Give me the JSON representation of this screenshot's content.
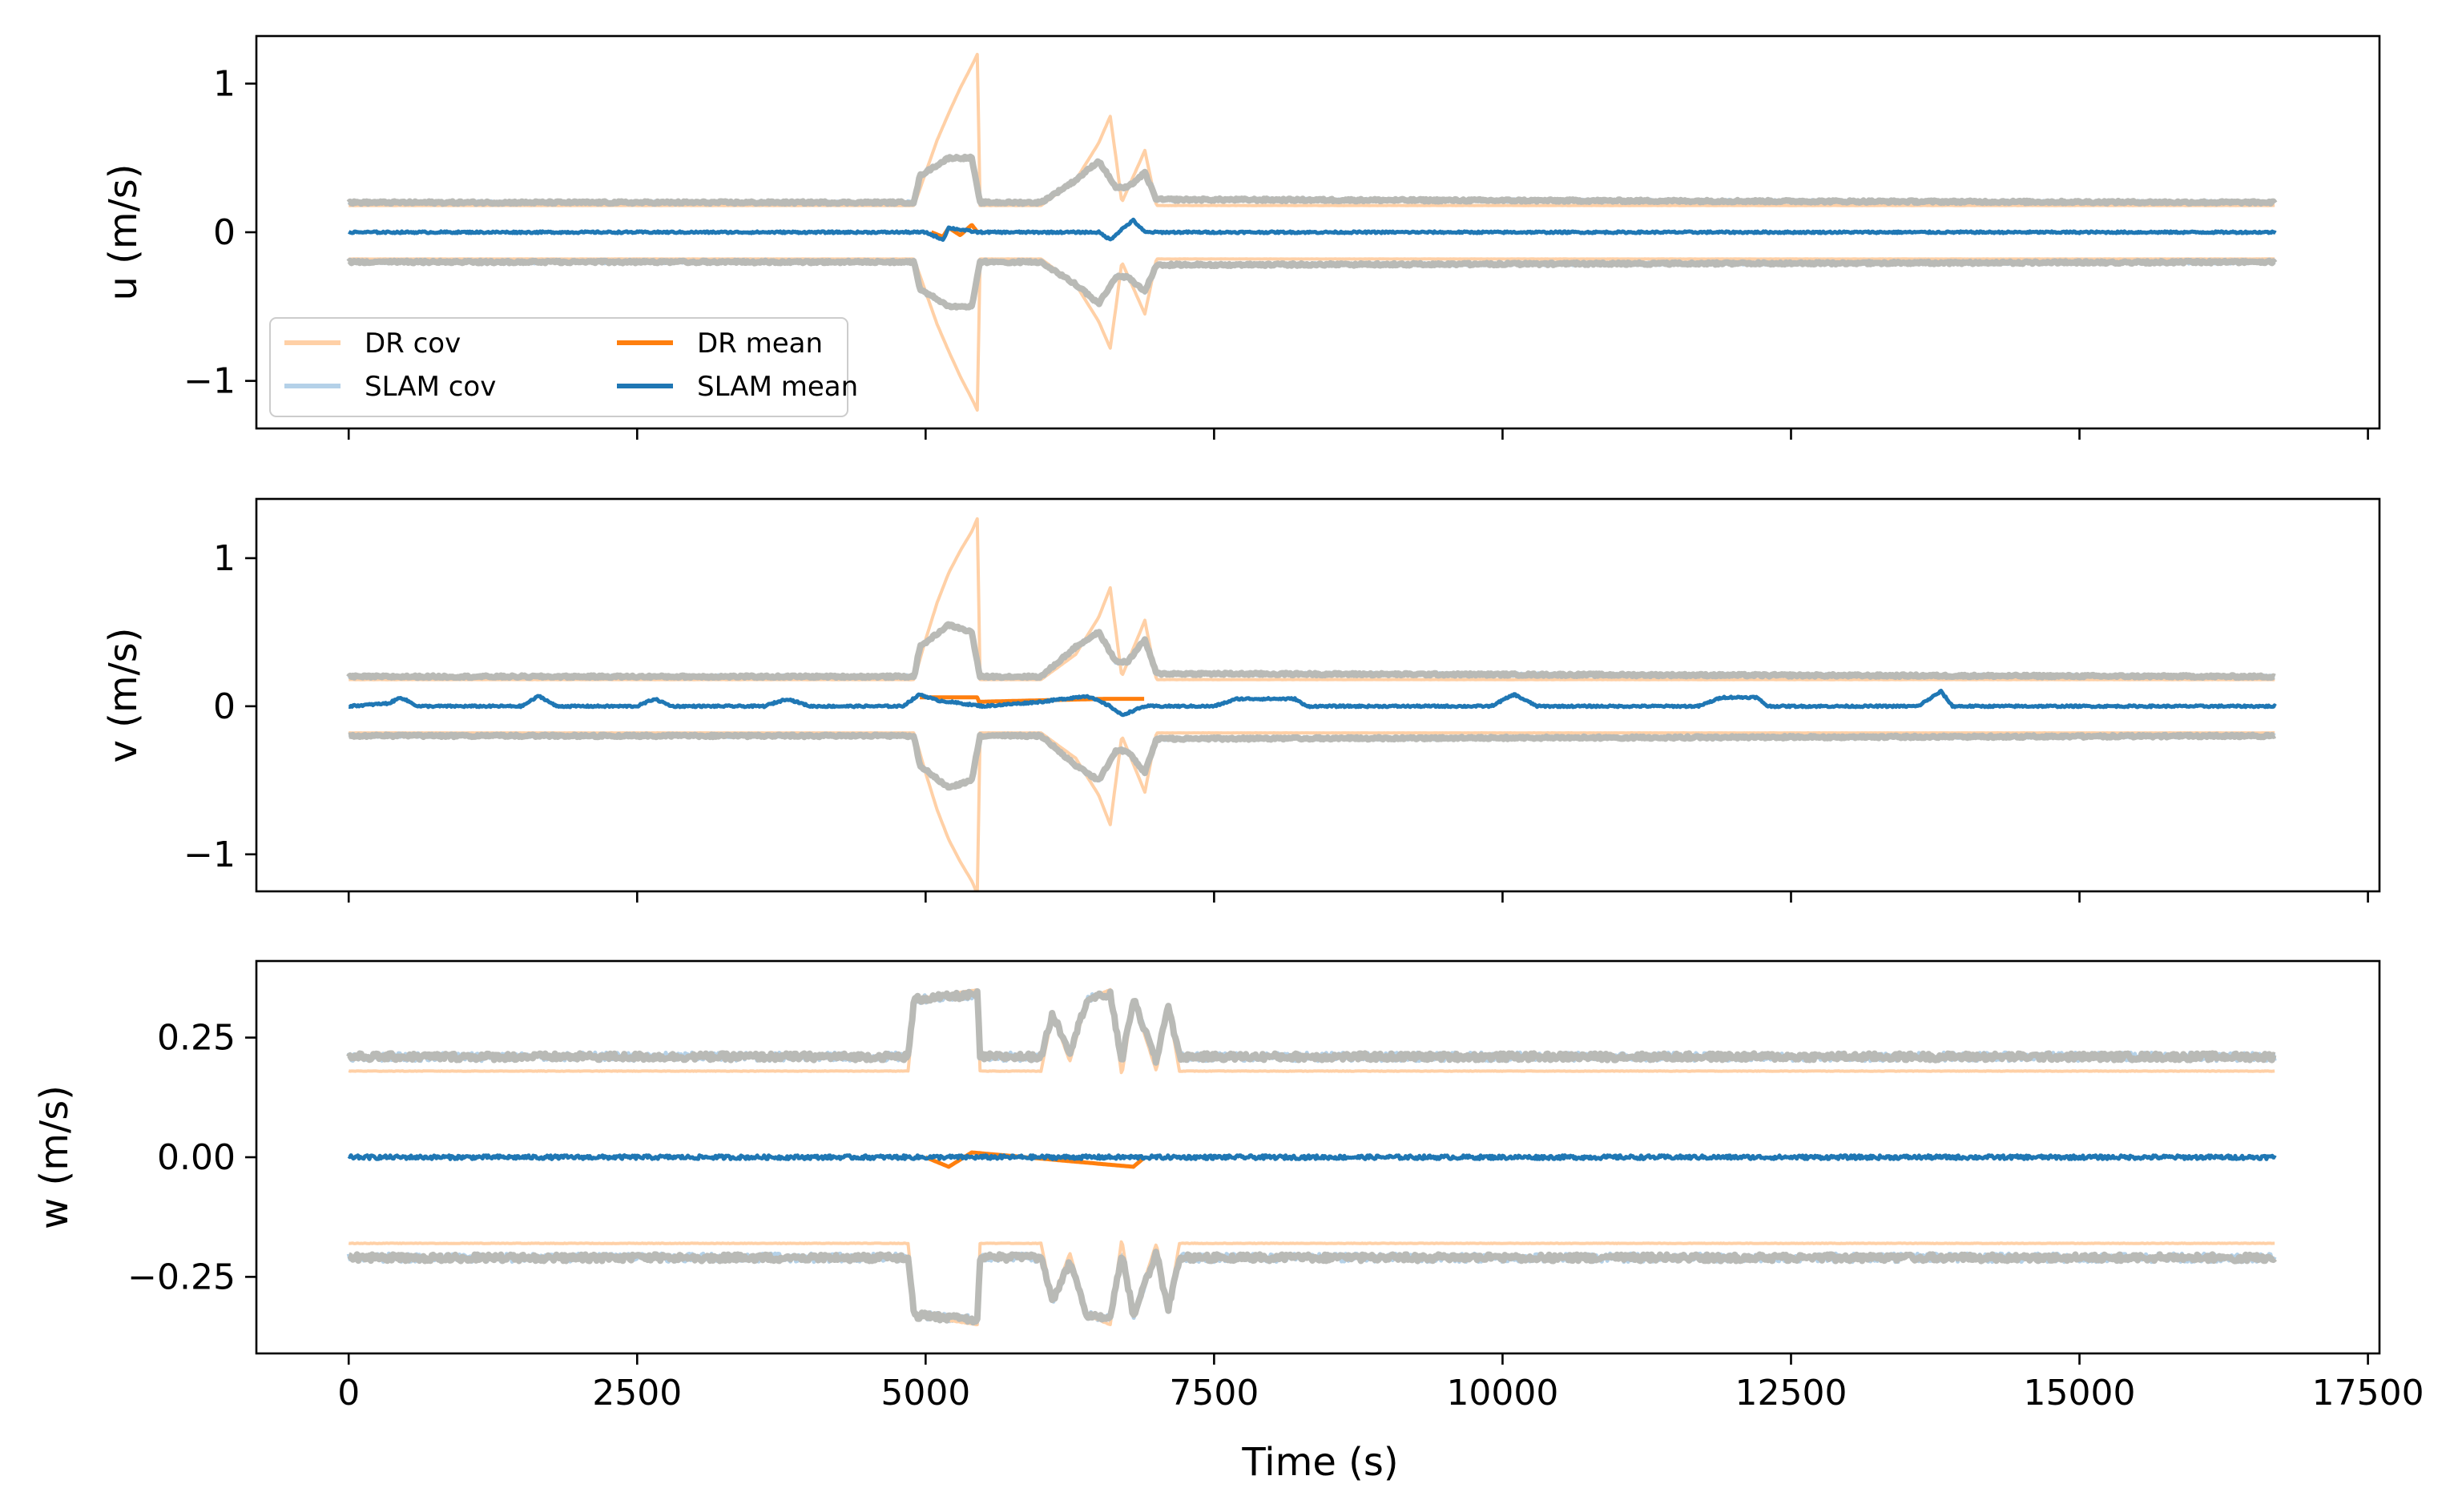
{
  "figure": {
    "xlabel": "Time (s)",
    "colors": {
      "dr_cov": "#ffd0a6",
      "slam_cov": "#b4d1e8",
      "overlap_cov": "#b9bab6",
      "dr_mean": "#ff7f0e",
      "slam_mean": "#1f77b4"
    }
  },
  "legend": {
    "entries": [
      {
        "label": "DR cov",
        "color": "#ffd0a6"
      },
      {
        "label": "SLAM cov",
        "color": "#b4d1e8"
      },
      {
        "label": "DR mean",
        "color": "#ff7f0e"
      },
      {
        "label": "SLAM mean",
        "color": "#1f77b4"
      }
    ],
    "placement": "lower-left (top panel)"
  },
  "chart_data": [
    {
      "type": "line",
      "ylabel": "u (m/s)",
      "xlim": [
        -800,
        17600
      ],
      "ylim": [
        -1.32,
        1.32
      ],
      "xticks": [
        0,
        2500,
        5000,
        7500,
        10000,
        12500,
        15000,
        17500
      ],
      "xticklabels_visible": false,
      "yticks": [
        -1,
        0,
        1
      ],
      "yticklabels": [
        "−1",
        "0",
        "1"
      ],
      "series": [
        {
          "name": "DR cov",
          "band": true,
          "x": [
            0,
            4900,
            5000,
            5100,
            5200,
            5300,
            5400,
            5450,
            5470,
            6000,
            6300,
            6500,
            6600,
            6650,
            6700,
            6900,
            7000,
            16700
          ],
          "upper": [
            0.18,
            0.18,
            0.4,
            0.62,
            0.8,
            0.97,
            1.12,
            1.2,
            0.18,
            0.18,
            0.35,
            0.6,
            0.78,
            0.5,
            0.2,
            0.55,
            0.18,
            0.18
          ]
        },
        {
          "name": "SLAM cov",
          "band": true,
          "x": [
            0,
            4900,
            4950,
            5200,
            5400,
            5470,
            6000,
            6300,
            6500,
            6650,
            6750,
            6900,
            7000,
            16700
          ],
          "upper": [
            0.2,
            0.2,
            0.38,
            0.5,
            0.5,
            0.2,
            0.2,
            0.35,
            0.48,
            0.3,
            0.3,
            0.4,
            0.22,
            0.2
          ]
        },
        {
          "name": "DR mean",
          "x": [
            5050,
            5150,
            5200,
            5300,
            5400,
            5450
          ],
          "y": [
            0.0,
            -0.03,
            0.03,
            -0.02,
            0.05,
            0.0
          ]
        },
        {
          "name": "SLAM mean",
          "x": [
            0,
            5000,
            5150,
            5200,
            5450,
            6500,
            6600,
            6700,
            6800,
            6900,
            7500,
            16700
          ],
          "y": [
            0.0,
            0.0,
            -0.05,
            0.03,
            0.0,
            0.0,
            -0.05,
            0.02,
            0.08,
            0.0,
            0.0,
            0.0
          ]
        }
      ]
    },
    {
      "type": "line",
      "ylabel": "v (m/s)",
      "xlim": [
        -800,
        17600
      ],
      "ylim": [
        -1.25,
        1.4
      ],
      "xticks": [
        0,
        2500,
        5000,
        7500,
        10000,
        12500,
        15000,
        17500
      ],
      "xticklabels_visible": false,
      "yticks": [
        -1,
        0,
        1
      ],
      "yticklabels": [
        "−1",
        "0",
        "1"
      ],
      "series": [
        {
          "name": "DR cov",
          "band": true,
          "x": [
            0,
            4900,
            5000,
            5100,
            5200,
            5300,
            5400,
            5450,
            5470,
            6000,
            6300,
            6500,
            6600,
            6650,
            6700,
            6900,
            7000,
            16700
          ],
          "upper": [
            0.18,
            0.18,
            0.45,
            0.7,
            0.9,
            1.05,
            1.18,
            1.27,
            0.18,
            0.18,
            0.35,
            0.6,
            0.8,
            0.5,
            0.2,
            0.58,
            0.18,
            0.18
          ]
        },
        {
          "name": "SLAM cov",
          "band": true,
          "x": [
            0,
            4900,
            4950,
            5200,
            5400,
            5470,
            6000,
            6300,
            6500,
            6650,
            6750,
            6900,
            7000,
            16700
          ],
          "upper": [
            0.2,
            0.2,
            0.4,
            0.55,
            0.5,
            0.2,
            0.2,
            0.4,
            0.5,
            0.3,
            0.3,
            0.45,
            0.22,
            0.2
          ]
        },
        {
          "name": "DR mean",
          "x": [
            4950,
            5000,
            5450,
            5460,
            6550,
            6900
          ],
          "y": [
            0.06,
            0.06,
            0.06,
            0.03,
            0.05,
            0.05
          ]
        },
        {
          "name": "SLAM mean",
          "x": [
            0,
            350,
            450,
            600,
            1500,
            1650,
            1800,
            2500,
            2650,
            2800,
            3600,
            3800,
            4000,
            4800,
            4950,
            5100,
            5500,
            6000,
            6400,
            6600,
            6700,
            6900,
            7500,
            7700,
            8200,
            8300,
            9900,
            10100,
            10300,
            11700,
            11900,
            12200,
            12300,
            13600,
            13800,
            13900,
            16700
          ],
          "y": [
            0.0,
            0.02,
            0.06,
            0.0,
            0.0,
            0.07,
            0.0,
            0.0,
            0.05,
            0.0,
            0.0,
            0.05,
            0.0,
            0.0,
            0.08,
            0.04,
            0.0,
            0.03,
            0.07,
            0.0,
            -0.06,
            0.0,
            0.0,
            0.05,
            0.05,
            0.0,
            0.0,
            0.08,
            0.0,
            0.0,
            0.06,
            0.06,
            0.0,
            0.0,
            0.1,
            0.0,
            0.0
          ]
        }
      ]
    },
    {
      "type": "line",
      "ylabel": "w (m/s)",
      "xlim": [
        -800,
        17600
      ],
      "ylim": [
        -0.41,
        0.41
      ],
      "xticks": [
        0,
        2500,
        5000,
        7500,
        10000,
        12500,
        15000,
        17500
      ],
      "xticklabels": [
        "0",
        "2500",
        "5000",
        "7500",
        "10000",
        "12500",
        "15000",
        "17500"
      ],
      "xticklabels_visible": true,
      "yticks": [
        -0.25,
        0.0,
        0.25
      ],
      "yticklabels": [
        "−0.25",
        "0.00",
        "0.25"
      ],
      "series": [
        {
          "name": "DR cov",
          "band": true,
          "x": [
            0,
            4850,
            4900,
            5450,
            5470,
            6000,
            6100,
            6250,
            6400,
            6600,
            6700,
            6800,
            7000,
            7100,
            7200,
            16700
          ],
          "upper": [
            0.18,
            0.18,
            0.33,
            0.35,
            0.18,
            0.18,
            0.3,
            0.2,
            0.33,
            0.35,
            0.17,
            0.33,
            0.18,
            0.32,
            0.18,
            0.18
          ]
        },
        {
          "name": "SLAM cov",
          "band": true,
          "x": [
            0,
            4850,
            4900,
            5450,
            5470,
            6000,
            6100,
            6250,
            6400,
            6600,
            6700,
            6800,
            7000,
            7100,
            7200,
            16700
          ],
          "upper": [
            0.21,
            0.21,
            0.33,
            0.34,
            0.21,
            0.21,
            0.3,
            0.22,
            0.33,
            0.34,
            0.2,
            0.33,
            0.2,
            0.32,
            0.21,
            0.21
          ]
        },
        {
          "name": "DR mean",
          "x": [
            5000,
            5200,
            5400,
            6800,
            6900
          ],
          "y": [
            0.0,
            -0.02,
            0.01,
            -0.02,
            0.0
          ]
        },
        {
          "name": "SLAM mean",
          "x": [
            0,
            16700
          ],
          "y": [
            0.0,
            0.0
          ]
        }
      ]
    }
  ]
}
